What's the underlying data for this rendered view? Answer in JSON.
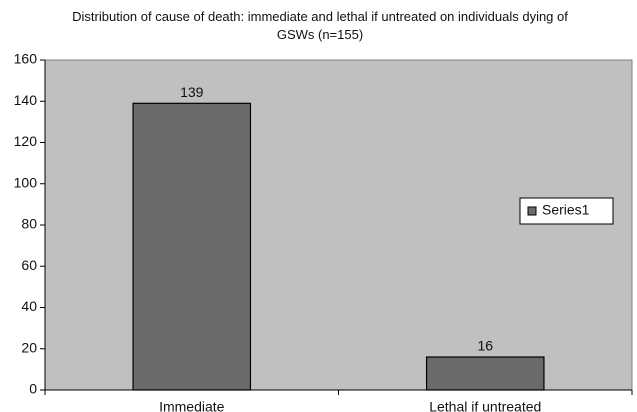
{
  "chart_data": {
    "type": "bar",
    "title": "Distribution of cause of death: immediate and lethal if untreated on individuals dying of GSWs (n=155)",
    "categories": [
      "Immediate",
      "Lethal if untreated"
    ],
    "series": [
      {
        "name": "Series1",
        "color": "#6b6b6b",
        "values": [
          139,
          16
        ]
      }
    ],
    "ylim": [
      0,
      160
    ],
    "yticks": [
      0,
      20,
      40,
      60,
      80,
      100,
      120,
      140,
      160
    ],
    "data_labels": true,
    "legend": "right",
    "plot_background": "#c0c0c0"
  }
}
